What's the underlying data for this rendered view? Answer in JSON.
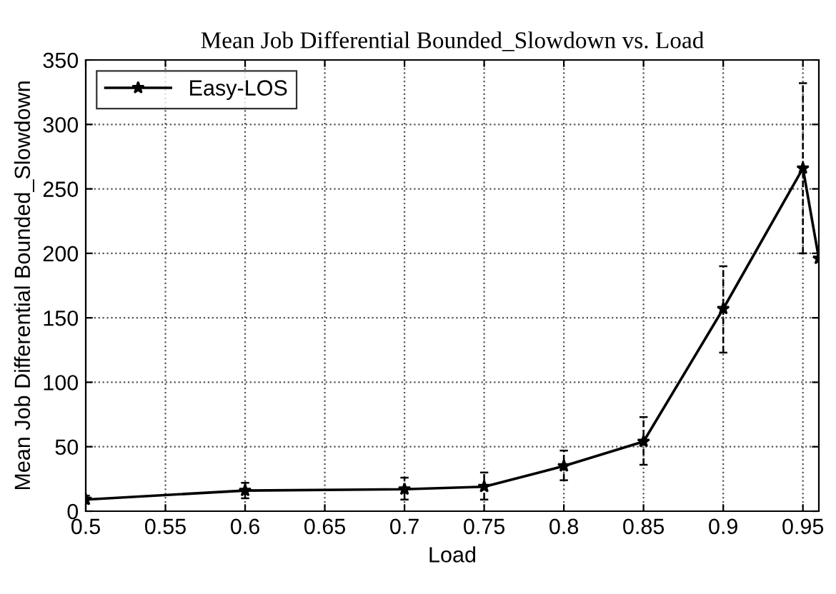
{
  "chart_data": {
    "type": "line",
    "title": "Mean Job Differential Bounded_Slowdown vs. Load",
    "xlabel": "Load",
    "ylabel": "Mean Job Differential Bounded_Slowdown",
    "x": [
      0.5,
      0.6,
      0.7,
      0.75,
      0.8,
      0.85,
      0.9,
      0.95,
      0.96
    ],
    "series": [
      {
        "name": "Easy-LOS",
        "color": "#000000",
        "values": [
          9,
          16,
          17,
          19,
          35,
          54,
          157,
          266,
          196
        ],
        "errors": [
          [
            6,
            12
          ],
          [
            10,
            22
          ],
          [
            9,
            26
          ],
          [
            9,
            30
          ],
          [
            24,
            47
          ],
          [
            36,
            73
          ],
          [
            123,
            190
          ],
          [
            200,
            332
          ],
          null
        ]
      }
    ],
    "xlim": [
      0.5,
      0.96
    ],
    "xticks": [
      0.5,
      0.55,
      0.6,
      0.65,
      0.7,
      0.75,
      0.8,
      0.85,
      0.9,
      0.95
    ],
    "ylim": [
      0,
      350
    ],
    "yticks": [
      0,
      50,
      100,
      150,
      200,
      250,
      300,
      350
    ],
    "grid": true,
    "legend": "top left",
    "marker": "star",
    "line_style": "solid"
  }
}
